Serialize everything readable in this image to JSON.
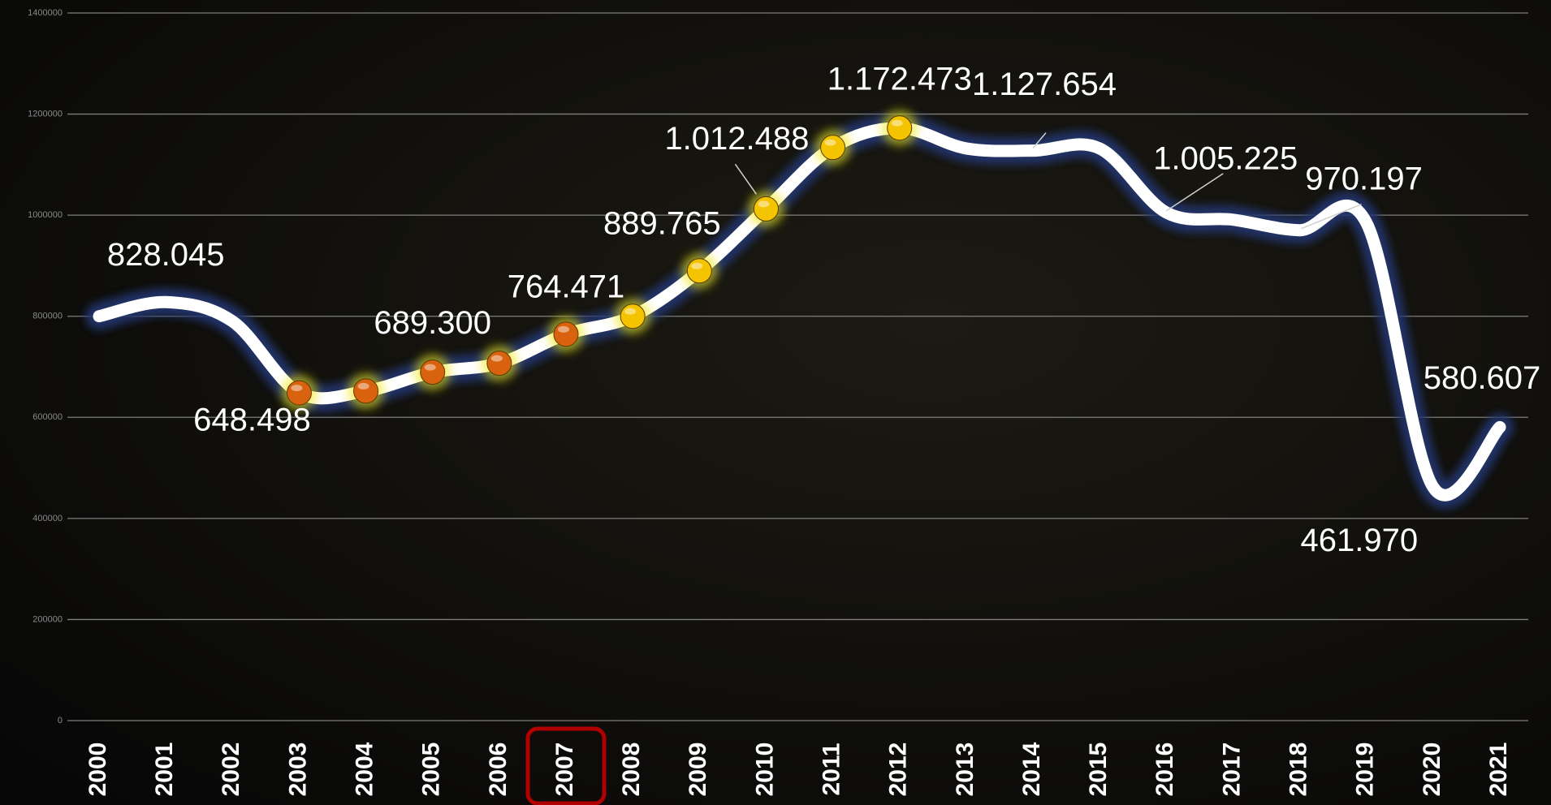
{
  "chart_data": {
    "type": "line",
    "categories": [
      "2000",
      "2001",
      "2002",
      "2003",
      "2004",
      "2005",
      "2006",
      "2007",
      "2008",
      "2009",
      "2010",
      "2011",
      "2012",
      "2013",
      "2014",
      "2015",
      "2016",
      "2017",
      "2018",
      "2019",
      "2020",
      "2021"
    ],
    "values": [
      800000,
      828045,
      790000,
      648498,
      652000,
      689300,
      707000,
      764471,
      800000,
      889765,
      1012488,
      1134000,
      1172473,
      1132000,
      1127654,
      1132000,
      1005225,
      991000,
      970197,
      985000,
      461970,
      580607
    ],
    "value_labels": [
      null,
      "828.045",
      null,
      "648.498",
      null,
      "689.300",
      null,
      "764.471",
      null,
      "889.765",
      "1.012.488",
      null,
      "1.172.473",
      null,
      "1.127.654",
      null,
      "1.005.225",
      null,
      "970.197",
      null,
      "461.970",
      "580.607"
    ],
    "color": "#ffffff",
    "glow_color": "#24366e",
    "marker_colors": [
      null,
      null,
      null,
      "#d9620e",
      "#d9620e",
      "#d9620e",
      "#d9620e",
      "#d9620e",
      "#f5c400",
      "#f5c400",
      "#f5c400",
      "#f5c400",
      "#f5c400",
      null,
      null,
      null,
      null,
      null,
      null,
      null,
      null,
      null
    ],
    "ylim": [
      0,
      1400000
    ],
    "yticks": [
      0,
      200000,
      400000,
      600000,
      800000,
      1000000,
      1200000,
      1400000
    ],
    "grid": true,
    "highlight": {
      "index": 7,
      "color": "#b00000"
    }
  }
}
